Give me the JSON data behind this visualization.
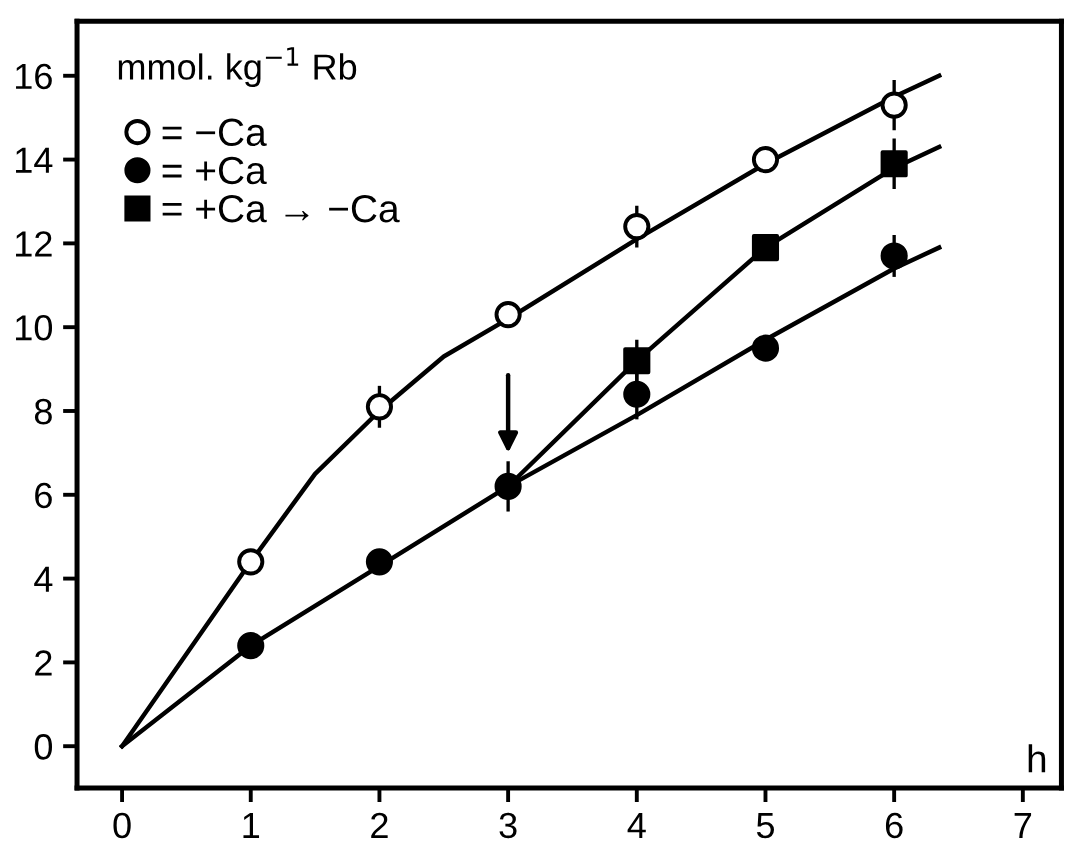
{
  "chart_data": {
    "type": "scatter",
    "xlabel": "h",
    "ylabel": "mmol. kg$^{−1}$ Rb",
    "xlim": [
      -0.35,
      7.3
    ],
    "ylim": [
      -1,
      17.3
    ],
    "xticks": [
      0,
      1,
      2,
      3,
      4,
      5,
      6,
      7
    ],
    "yticks": [
      0,
      2,
      4,
      6,
      8,
      10,
      12,
      14,
      16
    ],
    "grid": false,
    "legend": "top left",
    "series": [
      {
        "name": "= −Ca",
        "marker": "circle",
        "color": "#ffffff",
        "x": [
          1,
          2,
          3,
          4,
          5,
          6
        ],
        "values": [
          4.4,
          8.1,
          10.3,
          12.4,
          14.0,
          15.3
        ],
        "errors": [
          null,
          0.5,
          null,
          0.5,
          0.3,
          0.6
        ]
      },
      {
        "name": "= +Ca",
        "marker": "circle",
        "color": "#000000",
        "x": [
          1,
          2,
          3,
          4,
          5,
          6
        ],
        "values": [
          2.4,
          4.4,
          6.2,
          8.4,
          9.5,
          11.7
        ],
        "errors": [
          null,
          null,
          0.6,
          0.6,
          null,
          0.5
        ]
      },
      {
        "name": "= +Ca → −Ca",
        "marker": "square",
        "color": "#000000",
        "x": [
          4,
          5,
          6
        ],
        "values": [
          9.2,
          11.9,
          13.9
        ],
        "errors": [
          0.5,
          null,
          0.6
        ]
      },
      {
        "type": "line",
        "color": "#000000",
        "x": [
          0,
          1,
          1.5,
          2,
          2.5,
          3,
          4,
          5,
          6,
          6.35
        ],
        "values": [
          0,
          4.4,
          6.5,
          8.0,
          9.3,
          10.2,
          12.1,
          13.9,
          15.5,
          16.0
        ]
      },
      {
        "type": "line",
        "color": "#000000",
        "x": [
          0,
          1,
          2,
          3,
          4,
          5,
          6,
          6.35
        ],
        "values": [
          0,
          2.4,
          4.3,
          6.2,
          7.9,
          9.7,
          11.4,
          11.9
        ]
      },
      {
        "type": "line",
        "color": "#000000",
        "x": [
          3,
          4,
          5,
          6,
          6.35
        ],
        "values": [
          6.2,
          9.2,
          11.9,
          13.8,
          14.3
        ]
      }
    ]
  }
}
